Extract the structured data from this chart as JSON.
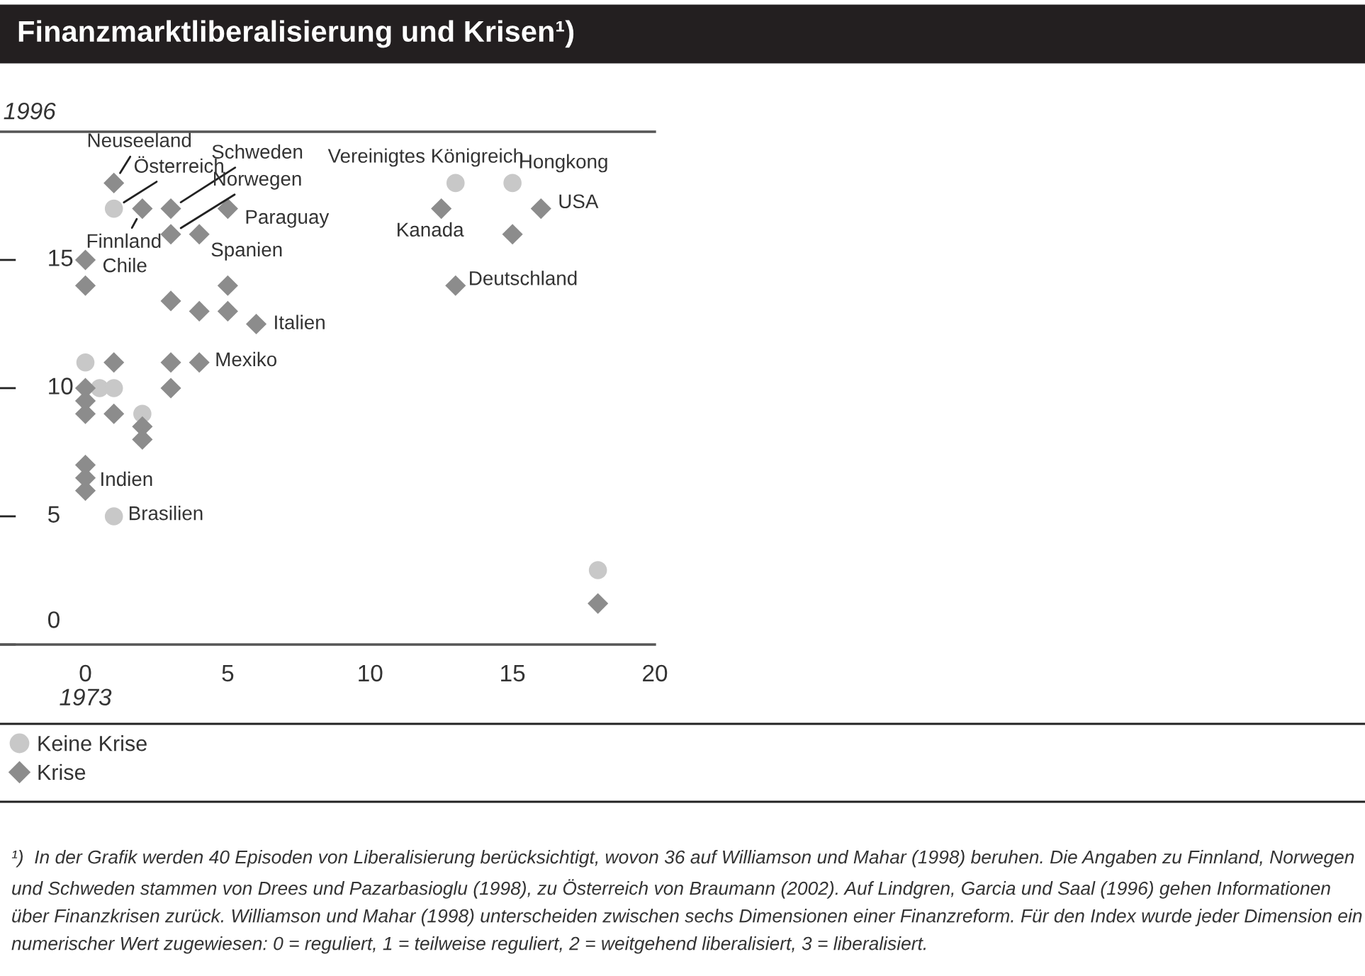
{
  "chart_data": {
    "type": "scatter",
    "title": "Finanzmarktliberalisierung und Krisen¹)",
    "xlabel": "1973",
    "ylabel": "1996",
    "xlim": [
      -3,
      20
    ],
    "ylim": [
      0,
      20
    ],
    "xticks": [
      0,
      5,
      10,
      15,
      20
    ],
    "yticks": [
      0,
      5,
      10,
      15
    ],
    "grid": false,
    "legend": "bottom left",
    "series": [
      {
        "name": "Keine Krise",
        "color": "#c8c8c8",
        "marker": "circle",
        "x": [
          1,
          0,
          0.5,
          1,
          2,
          1,
          13,
          15,
          18
        ],
        "values": [
          17,
          11,
          10,
          10,
          9,
          5,
          18,
          18,
          2.9
        ]
      },
      {
        "name": "Krise",
        "color": "#8c8c8c",
        "marker": "diamond",
        "x": [
          1,
          2,
          3,
          5,
          3,
          4,
          0,
          0,
          5,
          3,
          4,
          5,
          6,
          1,
          3,
          4,
          0,
          3,
          0,
          0,
          1,
          2,
          2,
          0,
          0,
          0,
          12.5,
          16,
          15,
          13,
          18
        ],
        "values": [
          18,
          17,
          17,
          17,
          16,
          16,
          15,
          14,
          14,
          13.4,
          13,
          13,
          12.5,
          11,
          11,
          11,
          10,
          10,
          9.5,
          9,
          9,
          8.5,
          8,
          7,
          6.5,
          6,
          17,
          17,
          16,
          14,
          1.6
        ]
      }
    ],
    "annotations": [
      {
        "text": "Neuseeland",
        "x": 1,
        "y": 18
      },
      {
        "text": "Österreich",
        "x": 1,
        "y": 17
      },
      {
        "text": "Finnland",
        "x": 2,
        "y": 17
      },
      {
        "text": "Schweden",
        "x": 3,
        "y": 17
      },
      {
        "text": "Norwegen",
        "x": 3,
        "y": 16
      },
      {
        "text": "Paraguay",
        "x": 5,
        "y": 17
      },
      {
        "text": "Spanien",
        "x": 4,
        "y": 16
      },
      {
        "text": "Chile",
        "x": 0,
        "y": 15
      },
      {
        "text": "Italien",
        "x": 6,
        "y": 12.5
      },
      {
        "text": "Mexiko",
        "x": 4,
        "y": 11
      },
      {
        "text": "Indien",
        "x": 0,
        "y": 6
      },
      {
        "text": "Brasilien",
        "x": 1,
        "y": 5
      },
      {
        "text": "Vereinigtes Königreich",
        "x": 13,
        "y": 18
      },
      {
        "text": "Hongkong",
        "x": 15,
        "y": 18
      },
      {
        "text": "USA",
        "x": 16,
        "y": 17
      },
      {
        "text": "Kanada",
        "x": 12.5,
        "y": 17
      },
      {
        "text": "Deutschland",
        "x": 13,
        "y": 14
      },
      "¹)  In der Grafik werden 40 Episoden von Liberalisierung berücksichtigt, wovon 36 auf Williamson und Mahar (1998) beruhen. Die Angaben zu Finnland, Norwegen und Schweden stammen von Drees und Pazarbasioglu (1998), zu Österreich von Braumann (2002). Auf Lindgren, Garcia und Saal (1996) gehen Informationen über Finanzkrisen zurück. Williamson und Mahar (1998) unterscheiden zwischen sechs Dimensionen einer Finanzreform. Für den Index wurde jeder Dimension ein numerischer Wert zugewiesen: 0 = reguliert, 1 = teilweise reguliert, 2 = weitgehend liberalisiert, 3 = liberalisiert."
    ]
  }
}
